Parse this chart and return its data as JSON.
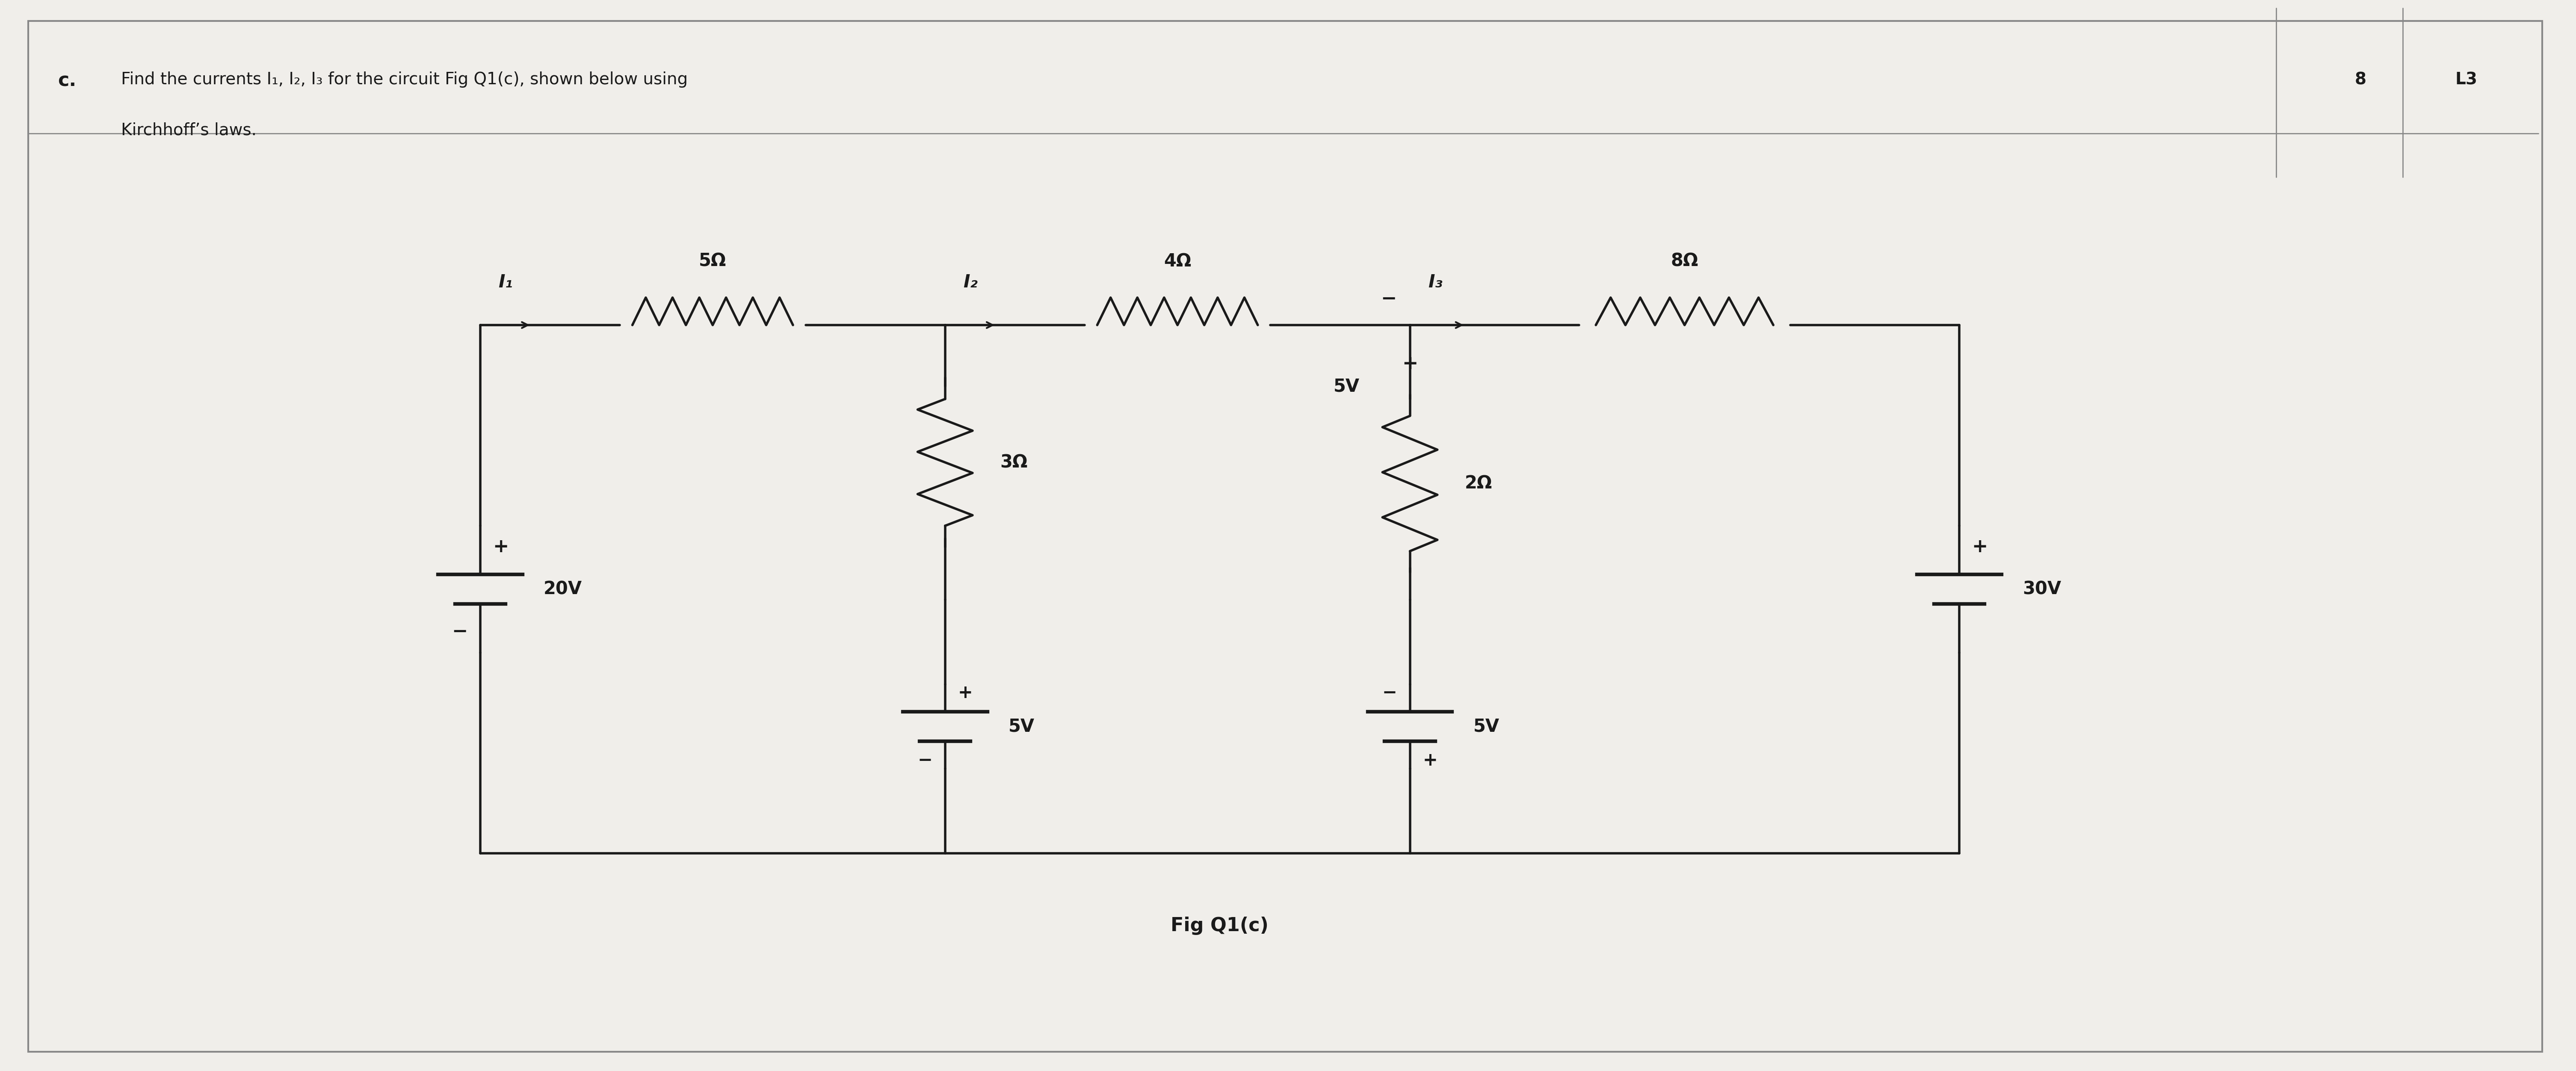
{
  "bg_color": "#f0eeea",
  "line_color": "#1a1a1a",
  "text_color": "#1a1a1a",
  "title_text": "c.",
  "question_text": "Find the currents I₁, I₂, I₃ for the circuit Fig Q1(c), shown below using",
  "question_text2": "Kirchhoff’s laws.",
  "marks": "8",
  "level": "L3",
  "fig_label": "Fig Q1(c)",
  "figsize": [
    60.23,
    25.04
  ],
  "dpi": 100
}
